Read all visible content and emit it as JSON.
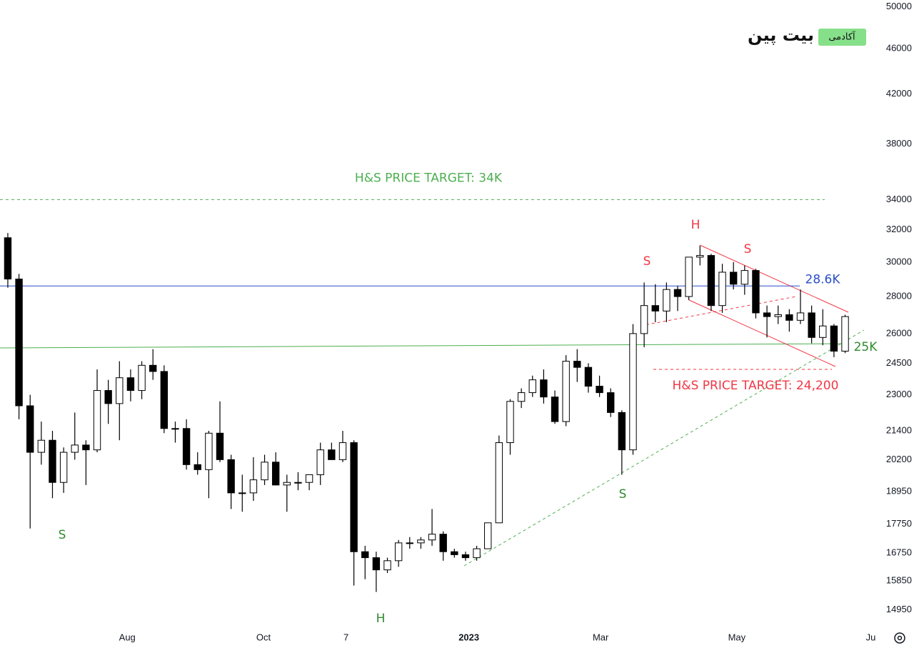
{
  "chart_data": {
    "type": "candlestick",
    "logo": {
      "name": "بیت پین",
      "tag": "آکادمی"
    },
    "x": [
      "2022-06-06",
      "2022-06-11",
      "2022-06-16",
      "2022-06-21",
      "2022-06-26",
      "2022-07-01",
      "2022-07-06",
      "2022-07-11",
      "2022-07-16",
      "2022-07-21",
      "2022-07-26",
      "2022-07-31",
      "2022-08-05",
      "2022-08-10",
      "2022-08-15",
      "2022-08-20",
      "2022-08-25",
      "2022-08-30",
      "2022-09-04",
      "2022-09-09",
      "2022-09-14",
      "2022-09-19",
      "2022-09-24",
      "2022-09-29",
      "2022-10-04",
      "2022-10-09",
      "2022-10-14",
      "2022-10-19",
      "2022-10-24",
      "2022-10-29",
      "2022-11-03",
      "2022-11-08",
      "2022-11-13",
      "2022-11-18",
      "2022-11-23",
      "2022-11-28",
      "2022-12-03",
      "2022-12-08",
      "2022-12-13",
      "2022-12-18",
      "2022-12-23",
      "2022-12-28",
      "2023-01-02",
      "2023-01-07",
      "2023-01-12",
      "2023-01-17",
      "2023-01-22",
      "2023-01-27",
      "2023-02-01",
      "2023-02-06",
      "2023-02-11",
      "2023-02-16",
      "2023-02-21",
      "2023-02-26",
      "2023-03-03",
      "2023-03-08",
      "2023-03-13",
      "2023-03-18",
      "2023-03-23",
      "2023-03-28",
      "2023-04-02",
      "2023-04-07",
      "2023-04-12",
      "2023-04-17",
      "2023-04-22",
      "2023-04-27",
      "2023-05-02",
      "2023-05-07",
      "2023-05-12",
      "2023-05-17",
      "2023-05-22",
      "2023-05-27",
      "2023-06-01",
      "2023-06-06",
      "2023-06-11",
      "2023-06-16"
    ],
    "open": [
      31500,
      29000,
      22500,
      20500,
      21000,
      19300,
      20500,
      20800,
      20600,
      23200,
      22600,
      23800,
      23200,
      24400,
      24100,
      21500,
      21500,
      20000,
      19800,
      21300,
      20200,
      18900,
      18900,
      19400,
      20100,
      19200,
      19300,
      19300,
      19600,
      20600,
      20200,
      20900,
      16800,
      16600,
      16200,
      16500,
      17100,
      17100,
      17200,
      17400,
      16800,
      16700,
      16600,
      16900,
      17800,
      20900,
      22700,
      23100,
      23700,
      22900,
      21800,
      24600,
      24300,
      23400,
      23100,
      22200,
      20600,
      26000,
      27500,
      27200,
      28400,
      28000,
      30300,
      30400,
      27500,
      29400,
      28700,
      29500,
      27100,
      26900,
      27000,
      26700,
      27100,
      25800,
      26400,
      25100
    ],
    "high": [
      31800,
      29300,
      23000,
      21800,
      21400,
      20700,
      22200,
      21000,
      24200,
      23700,
      24600,
      24200,
      24600,
      25200,
      24400,
      21800,
      21900,
      20500,
      21400,
      22700,
      20400,
      19600,
      20300,
      20400,
      20500,
      19600,
      19700,
      19600,
      20900,
      20900,
      21400,
      21000,
      17000,
      16800,
      16600,
      17200,
      17300,
      17300,
      18300,
      17500,
      16900,
      16800,
      17000,
      17800,
      21200,
      22800,
      23300,
      23900,
      24200,
      23200,
      24900,
      25200,
      24500,
      23900,
      23300,
      22300,
      26500,
      28800,
      28700,
      28800,
      28600,
      30300,
      31000,
      30500,
      29900,
      30000,
      29800,
      29600,
      27500,
      27500,
      27300,
      28400,
      27500,
      27300,
      26500,
      27000
    ],
    "low": [
      28500,
      21900,
      17600,
      20000,
      18700,
      18900,
      20200,
      19200,
      20500,
      21700,
      21000,
      22700,
      22800,
      23700,
      21300,
      20900,
      19800,
      19600,
      18700,
      20100,
      18300,
      18200,
      18600,
      19200,
      19200,
      18200,
      19000,
      19000,
      19200,
      20200,
      20100,
      15700,
      15900,
      15500,
      16100,
      16300,
      16900,
      16900,
      17000,
      16500,
      16600,
      16500,
      16500,
      16900,
      17800,
      20400,
      22400,
      22900,
      22600,
      21700,
      21600,
      23600,
      23100,
      22900,
      22000,
      19600,
      20400,
      25300,
      26600,
      26600,
      27200,
      27800,
      29800,
      27200,
      27100,
      28400,
      28100,
      26800,
      25800,
      26500,
      26100,
      26500,
      25500,
      25400,
      24800,
      25000
    ],
    "close": [
      29000,
      22500,
      20500,
      21000,
      19300,
      20500,
      20800,
      20600,
      23200,
      22600,
      23800,
      23200,
      24400,
      24100,
      21500,
      21500,
      20000,
      19800,
      21300,
      20200,
      18900,
      18900,
      19400,
      20100,
      19200,
      19300,
      19300,
      19600,
      20600,
      20200,
      20900,
      16800,
      16600,
      16200,
      16500,
      17100,
      17100,
      17200,
      17400,
      16800,
      16700,
      16600,
      16900,
      17800,
      20900,
      22700,
      23100,
      23700,
      22900,
      21800,
      24600,
      24300,
      23400,
      23100,
      22200,
      20600,
      26000,
      27500,
      27200,
      28400,
      28000,
      30300,
      30400,
      27500,
      29400,
      28700,
      29500,
      27100,
      26900,
      27000,
      26700,
      27100,
      25800,
      26400,
      25100,
      26900
    ],
    "up_color": "#ffffff",
    "down_color": "#000000",
    "wick_color": "#000000",
    "log_scale": true,
    "xlim": [
      "2022-06-05",
      "2023-07-04"
    ],
    "xticks": [
      {
        "value": "2022-08-01",
        "label": "Aug"
      },
      {
        "value": "2022-10-01",
        "label": "Oct"
      },
      {
        "value": "2022-11-07",
        "label": "7"
      },
      {
        "value": "2023-01-01",
        "label": "2023"
      },
      {
        "value": "2023-03-01",
        "label": "Mar"
      },
      {
        "value": "2023-05-01",
        "label": "May"
      },
      {
        "value": "2023-06-30",
        "label": "Ju"
      }
    ],
    "ylim": [
      14400,
      50700
    ],
    "yticks": [
      14950,
      15850,
      16750,
      17750,
      18950,
      20200,
      21400,
      23000,
      24500,
      26000,
      28000,
      30000,
      32000,
      34000,
      38000,
      42000,
      46000,
      50000
    ],
    "levels": [
      {
        "value": 34000,
        "label": "H&S PRICE TARGET: 34K",
        "color": "#4caf50",
        "style": "dashed"
      },
      {
        "value": 28600,
        "label": "28.6K",
        "color": "#2a4fc7",
        "style": "solid"
      },
      {
        "value": 24200,
        "label": "H&S PRICE TARGET: 24,200",
        "color": "#f23645",
        "style": "dashed"
      }
    ],
    "annotations": [
      {
        "text": "25K",
        "color": "#2e8b2e"
      },
      {
        "text": "S",
        "color": "#2e8b2e"
      },
      {
        "text": "H",
        "color": "#2e8b2e"
      },
      {
        "text": "S",
        "color": "#2e8b2e"
      },
      {
        "text": "S",
        "color": "#f23645"
      },
      {
        "text": "H",
        "color": "#f23645"
      },
      {
        "text": "S",
        "color": "#f23645"
      }
    ]
  }
}
